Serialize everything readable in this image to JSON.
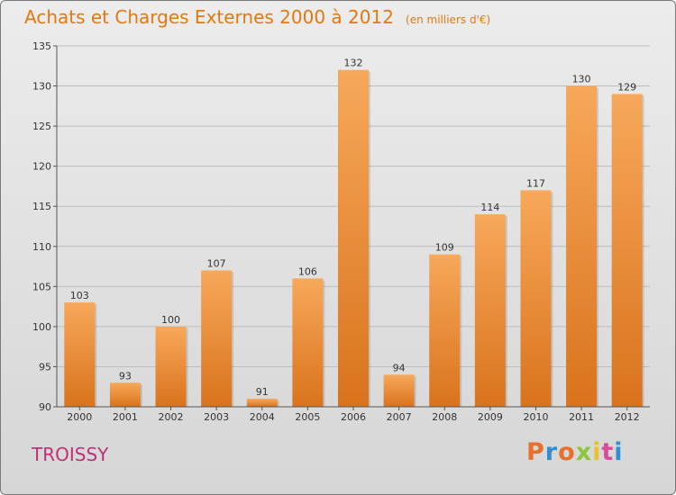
{
  "header": {
    "title": "Achats et Charges Externes 2000 à 2012",
    "unit": "(en milliers d'€)"
  },
  "footer": {
    "commune": "TROISSY",
    "brand": "Proxiti",
    "brand_colors": [
      "#e8702a",
      "#2f8fd0",
      "#e8702a",
      "#8cc63f",
      "#e8c22a",
      "#d94a9b",
      "#2f8fd0"
    ]
  },
  "colors": {
    "bar_top": "#f7a85a",
    "bar_bottom": "#d9731c",
    "title": "#e07a10",
    "commune": "#c0307a"
  },
  "chart_data": {
    "type": "bar",
    "title": "Achats et Charges Externes 2000 à 2012",
    "subtitle": "(en milliers d'€)",
    "xlabel": "",
    "ylabel": "",
    "categories": [
      "2000",
      "2001",
      "2002",
      "2003",
      "2004",
      "2005",
      "2006",
      "2007",
      "2008",
      "2009",
      "2010",
      "2011",
      "2012"
    ],
    "values": [
      103,
      93,
      100,
      107,
      91,
      106,
      132,
      94,
      109,
      114,
      117,
      130,
      129
    ],
    "ylim": [
      90,
      135
    ],
    "yticks": [
      90,
      95,
      100,
      105,
      110,
      115,
      120,
      125,
      130,
      135
    ],
    "grid": true
  }
}
